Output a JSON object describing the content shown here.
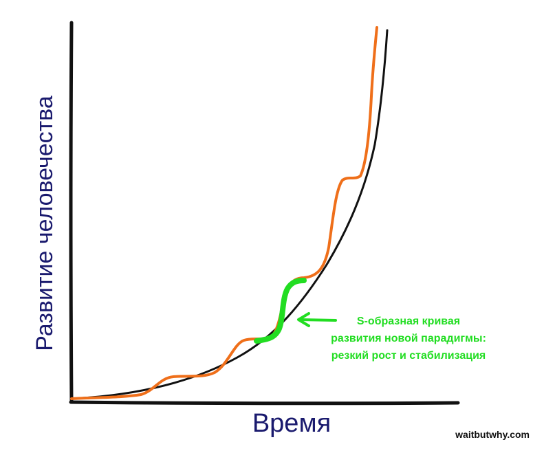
{
  "axes": {
    "y_label": "Развитие человечества",
    "x_label": "Время",
    "label_color": "#1a1a6e",
    "axis_color": "#111111"
  },
  "curves": {
    "smooth_color": "#111111",
    "stepped_color": "#ef6f1a",
    "highlight_color": "#22dd22"
  },
  "annotation": {
    "lines": [
      "S-образная кривая",
      "развития новой парадигмы:",
      "резкий рост и стабилизация"
    ],
    "color": "#22dd22",
    "arrow_icon": "arrow-left-icon"
  },
  "watermark": "waitbutwhy.com"
}
